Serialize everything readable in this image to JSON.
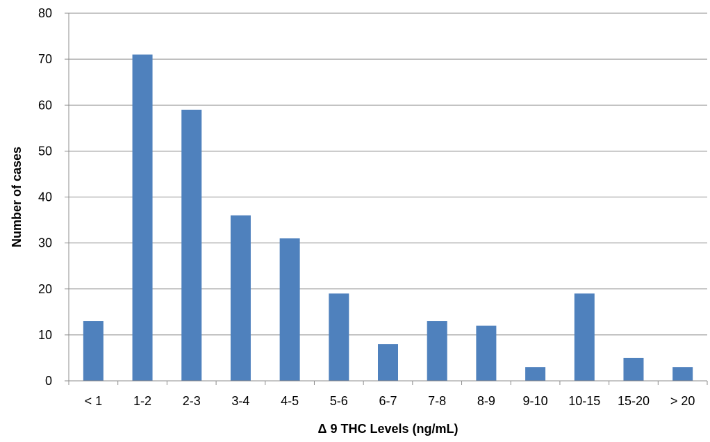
{
  "chart_data": {
    "type": "bar",
    "title": "",
    "xlabel": "Δ 9 THC Levels (ng/mL)",
    "ylabel": "Number of cases",
    "ylim": [
      0,
      80
    ],
    "yticks": [
      0,
      10,
      20,
      30,
      40,
      50,
      60,
      70,
      80
    ],
    "grid": true,
    "legend": "none",
    "categories": [
      "< 1",
      "1-2",
      "2-3",
      "3-4",
      "4-5",
      "5-6",
      "6-7",
      "7-8",
      "8-9",
      "9-10",
      "10-15",
      "15-20",
      "> 20"
    ],
    "series": [
      {
        "values": [
          13,
          71,
          59,
          36,
          31,
          19,
          8,
          13,
          12,
          3,
          19,
          5,
          3
        ],
        "color": "#4F81BD"
      }
    ]
  }
}
